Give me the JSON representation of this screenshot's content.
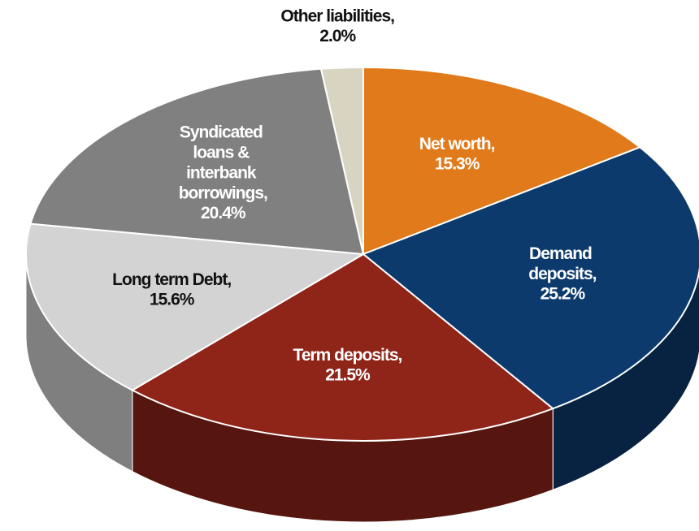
{
  "chart_data": {
    "type": "pie",
    "categories": [
      "Net worth,",
      "Demand deposits,",
      "Term deposits,",
      "Long term Debt,",
      "Syndicated loans & interbank borrowings,",
      "Other liabilities,"
    ],
    "values": [
      15.3,
      25.2,
      21.5,
      15.6,
      20.4,
      2.0
    ],
    "value_labels": [
      "15.3%",
      "25.2%",
      "21.5%",
      "15.6%",
      "20.4%",
      "2.0%"
    ],
    "colors": [
      "#e07a1b",
      "#0c3a6d",
      "#8f2419",
      "#d3d3d3",
      "#808080",
      "#d8d4c2"
    ]
  }
}
